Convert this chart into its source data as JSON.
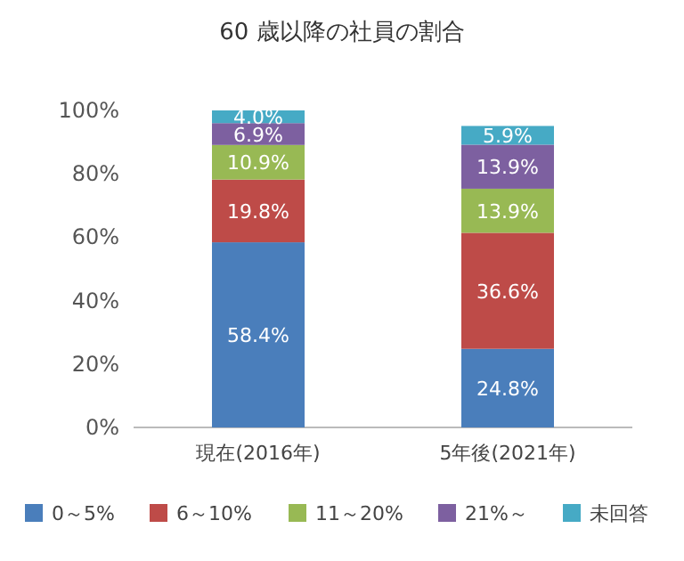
{
  "chart_data": {
    "type": "bar",
    "stacked": true,
    "title": "60 歳以降の社員の割合",
    "categories": [
      "現在(2016年)",
      "5年後(2021年)"
    ],
    "series": [
      {
        "name": "0～5%",
        "color": "#4a7ebb",
        "values": [
          58.4,
          24.8
        ],
        "value_labels": [
          "58.4%",
          "24.8%"
        ]
      },
      {
        "name": "6～10%",
        "color": "#be4b48",
        "values": [
          19.8,
          36.6
        ],
        "value_labels": [
          "19.8%",
          "36.6%"
        ]
      },
      {
        "name": "11～20%",
        "color": "#98b954",
        "values": [
          10.9,
          13.9
        ],
        "value_labels": [
          "10.9%",
          "13.9%"
        ]
      },
      {
        "name": "21%～",
        "color": "#7d60a0",
        "values": [
          6.9,
          13.9
        ],
        "value_labels": [
          "6.9%",
          "13.9%"
        ]
      },
      {
        "name": "未回答",
        "color": "#46aac5",
        "values": [
          4.0,
          5.9
        ],
        "value_labels": [
          "4.0%",
          "5.9%"
        ]
      }
    ],
    "ylim": [
      0,
      100
    ],
    "yticks": [
      {
        "value": 0,
        "label": "0%"
      },
      {
        "value": 20,
        "label": "20%"
      },
      {
        "value": 40,
        "label": "40%"
      },
      {
        "value": 60,
        "label": "60%"
      },
      {
        "value": 80,
        "label": "80%"
      },
      {
        "value": 100,
        "label": "100%"
      }
    ],
    "legend": "bottom",
    "grid": false
  }
}
